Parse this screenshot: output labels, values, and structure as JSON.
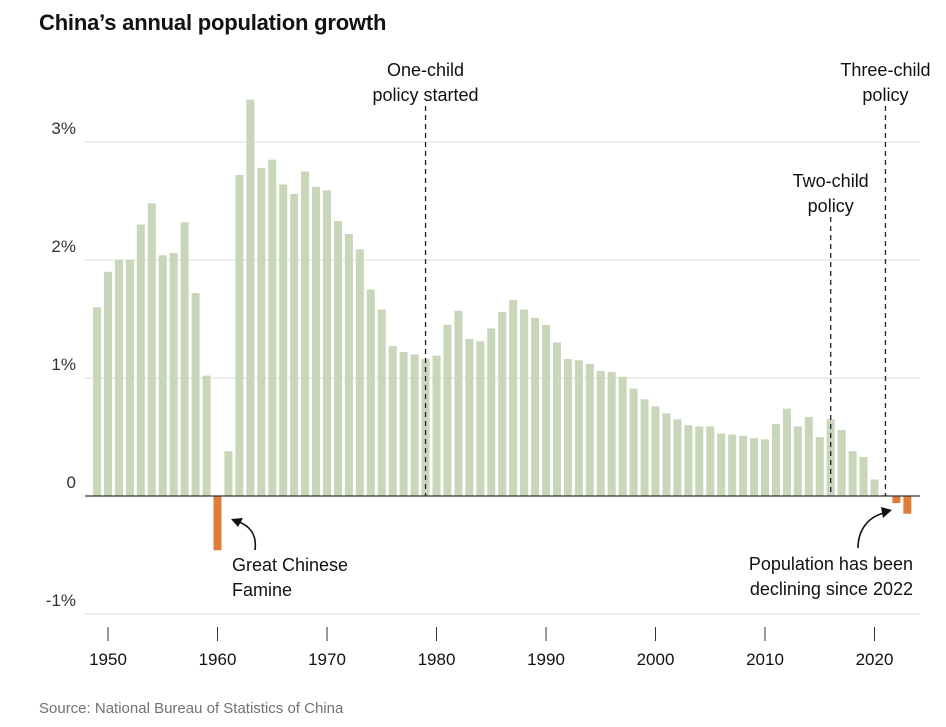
{
  "title": "China’s annual population growth",
  "source": "Source: National Bureau of Statistics of China",
  "chart_data": {
    "type": "bar",
    "title": "China’s annual population growth",
    "xlabel": "",
    "ylabel": "",
    "y_unit": "%",
    "ylim": [
      -1,
      3.6
    ],
    "grid": true,
    "x": [
      1949,
      1950,
      1951,
      1952,
      1953,
      1954,
      1955,
      1956,
      1957,
      1958,
      1959,
      1960,
      1961,
      1962,
      1963,
      1964,
      1965,
      1966,
      1967,
      1968,
      1969,
      1970,
      1971,
      1972,
      1973,
      1974,
      1975,
      1976,
      1977,
      1978,
      1979,
      1980,
      1981,
      1982,
      1983,
      1984,
      1985,
      1986,
      1987,
      1988,
      1989,
      1990,
      1991,
      1992,
      1993,
      1994,
      1995,
      1996,
      1997,
      1998,
      1999,
      2000,
      2001,
      2002,
      2003,
      2004,
      2005,
      2006,
      2007,
      2008,
      2009,
      2010,
      2011,
      2012,
      2013,
      2014,
      2015,
      2016,
      2017,
      2018,
      2019,
      2020,
      2021,
      2022,
      2023
    ],
    "values": [
      1.6,
      1.9,
      2.0,
      2.0,
      2.3,
      2.48,
      2.04,
      2.06,
      2.32,
      1.72,
      1.02,
      -0.46,
      0.38,
      2.72,
      3.36,
      2.78,
      2.85,
      2.64,
      2.56,
      2.75,
      2.62,
      2.59,
      2.33,
      2.22,
      2.09,
      1.75,
      1.58,
      1.27,
      1.22,
      1.2,
      1.16,
      1.19,
      1.45,
      1.57,
      1.33,
      1.31,
      1.42,
      1.56,
      1.66,
      1.58,
      1.51,
      1.45,
      1.3,
      1.16,
      1.15,
      1.12,
      1.06,
      1.05,
      1.01,
      0.91,
      0.82,
      0.76,
      0.7,
      0.65,
      0.6,
      0.59,
      0.59,
      0.53,
      0.52,
      0.51,
      0.49,
      0.48,
      0.61,
      0.74,
      0.59,
      0.67,
      0.5,
      0.65,
      0.56,
      0.38,
      0.33,
      0.14,
      0.01,
      -0.06,
      -0.15
    ],
    "negative_color": "#e07b39",
    "positive_color": "#c8d6b9",
    "yticks": [
      {
        "value": -1,
        "label": "-1%"
      },
      {
        "value": 0,
        "label": "0"
      },
      {
        "value": 1,
        "label": "1%"
      },
      {
        "value": 2,
        "label": "2%"
      },
      {
        "value": 3,
        "label": "3%"
      }
    ],
    "xticks": [
      1950,
      1960,
      1970,
      1980,
      1990,
      2000,
      2010,
      2020
    ],
    "policy_markers": [
      {
        "year": 1979,
        "lines": [
          "One-child",
          "policy started"
        ]
      },
      {
        "year": 2016,
        "lines": [
          "Two-child",
          "policy"
        ]
      },
      {
        "year": 2021,
        "lines": [
          "Three-child",
          "policy"
        ]
      }
    ],
    "annotations": [
      {
        "year": 1960,
        "lines": [
          "Great Chinese",
          "Famine"
        ]
      },
      {
        "year": 2022,
        "lines": [
          "Population has been",
          "declining since 2022"
        ]
      }
    ]
  }
}
